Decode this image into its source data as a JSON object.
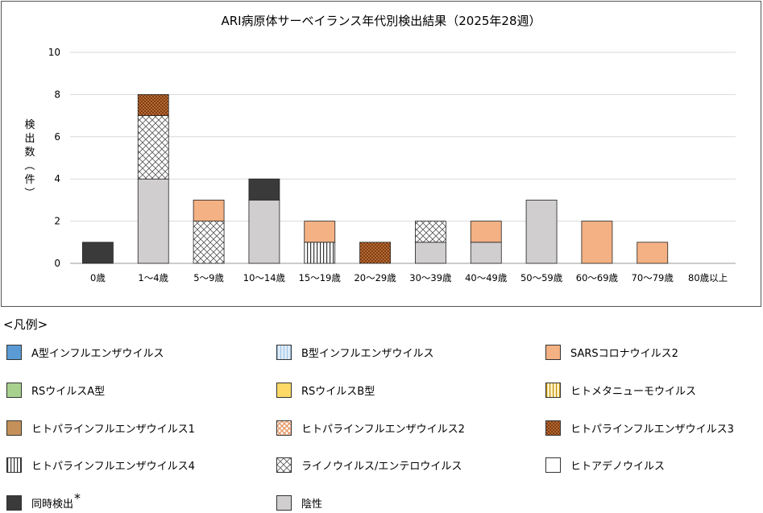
{
  "chart_data": {
    "type": "bar",
    "stacked": true,
    "title": "ARI病原体サーベイランス年代別検出結果（2025年28週）",
    "ylabel": "検出数（件）",
    "ylim": [
      0,
      10
    ],
    "yticks": [
      0,
      2,
      4,
      6,
      8,
      10
    ],
    "grid": true,
    "categories": [
      "0歳",
      "1～4歳",
      "5～9歳",
      "10～14歳",
      "15～19歳",
      "20～29歳",
      "30～39歳",
      "40～49歳",
      "50～59歳",
      "60～69歳",
      "70～79歳",
      "80歳以上"
    ],
    "series": [
      {
        "name": "陰性",
        "key": "negative",
        "values": [
          0,
          4,
          0,
          3,
          0,
          0,
          1,
          1,
          3,
          0,
          0,
          0
        ]
      },
      {
        "name": "ヒトパラインフルエンザウイルス4",
        "key": "hpiv4",
        "values": [
          0,
          0,
          0,
          0,
          1,
          0,
          0,
          0,
          0,
          0,
          0,
          0
        ]
      },
      {
        "name": "ライノウイルス/エンテロウイルス",
        "key": "rhino",
        "values": [
          0,
          3,
          2,
          0,
          0,
          0,
          1,
          0,
          0,
          0,
          0,
          0
        ]
      },
      {
        "name": "ヒトパラインフルエンザウイルス3",
        "key": "hpiv3",
        "values": [
          0,
          1,
          0,
          0,
          0,
          1,
          0,
          0,
          0,
          0,
          0,
          0
        ]
      },
      {
        "name": "SARSコロナウイルス2",
        "key": "sars",
        "values": [
          0,
          0,
          1,
          0,
          1,
          0,
          0,
          1,
          0,
          2,
          1,
          0
        ]
      },
      {
        "name": "同時検出",
        "key": "coinf",
        "values": [
          1,
          0,
          0,
          1,
          0,
          0,
          0,
          0,
          0,
          0,
          0,
          0
        ]
      }
    ]
  },
  "legend": {
    "title": "<凡例>",
    "items": [
      {
        "key": "fluA",
        "label": "A型インフルエンザウイルス",
        "asterisk": ""
      },
      {
        "key": "fluB",
        "label": "B型インフルエンザウイルス",
        "asterisk": ""
      },
      {
        "key": "sars",
        "label": "SARSコロナウイルス2",
        "asterisk": ""
      },
      {
        "key": "rsA",
        "label": "RSウイルスA型",
        "asterisk": ""
      },
      {
        "key": "rsB",
        "label": "RSウイルスB型",
        "asterisk": ""
      },
      {
        "key": "hmpv",
        "label": "ヒトメタニューモウイルス",
        "asterisk": ""
      },
      {
        "key": "hpiv1",
        "label": "ヒトパラインフルエンザウイルス1",
        "asterisk": ""
      },
      {
        "key": "hpiv2",
        "label": "ヒトパラインフルエンザウイルス2",
        "asterisk": ""
      },
      {
        "key": "hpiv3",
        "label": "ヒトパラインフルエンザウイルス3",
        "asterisk": ""
      },
      {
        "key": "hpiv4",
        "label": "ヒトパラインフルエンザウイルス4",
        "asterisk": ""
      },
      {
        "key": "rhino",
        "label": "ライノウイルス/エンテロウイルス",
        "asterisk": ""
      },
      {
        "key": "adeno",
        "label": "ヒトアデノウイルス",
        "asterisk": ""
      },
      {
        "key": "coinf",
        "label": "同時検出",
        "asterisk": "*"
      },
      {
        "key": "negative",
        "label": "陰性",
        "asterisk": ""
      }
    ]
  },
  "styles": {
    "fluA": {
      "color": "#5b9bd5",
      "pattern": "solid"
    },
    "fluB": {
      "color": "#c9dff2",
      "pattern": "vlines-light"
    },
    "sars": {
      "color": "#f4b183",
      "pattern": "solid"
    },
    "rsA": {
      "color": "#a9d18e",
      "pattern": "solid"
    },
    "rsB": {
      "color": "#ffd966",
      "pattern": "solid"
    },
    "hmpv": {
      "color": "#fff2cc",
      "pattern": "vlines-tan"
    },
    "hpiv1": {
      "color": "#c5915a",
      "pattern": "solid"
    },
    "hpiv2": {
      "color": "#f8cbad",
      "pattern": "checker"
    },
    "hpiv3": {
      "color": "#843c0c",
      "pattern": "dots"
    },
    "hpiv4": {
      "color": "#ffffff",
      "pattern": "vlines-dark"
    },
    "rhino": {
      "color": "#ffffff",
      "pattern": "crosshatch"
    },
    "adeno": {
      "color": "#ffffff",
      "pattern": "solid"
    },
    "coinf": {
      "color": "#3a3a3a",
      "pattern": "solid"
    },
    "negative": {
      "color": "#d0cece",
      "pattern": "solid"
    }
  }
}
